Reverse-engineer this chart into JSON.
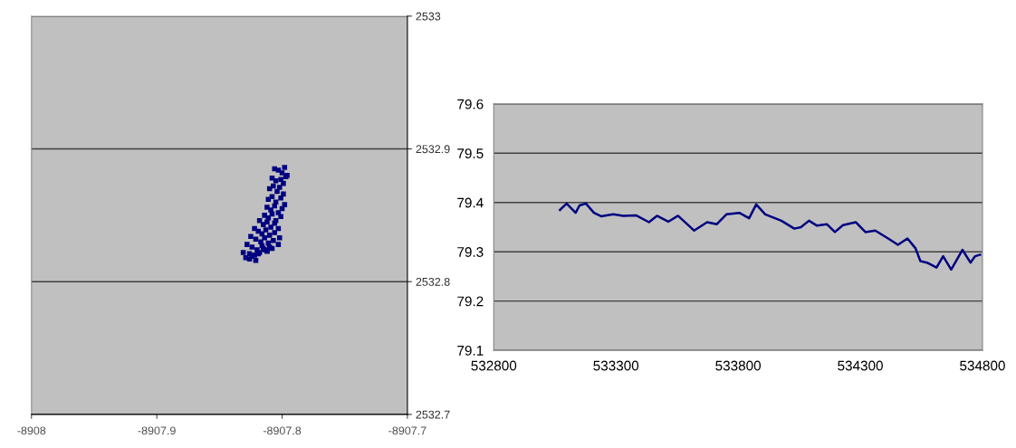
{
  "chart_data": [
    {
      "type": "scatter",
      "marker": "square",
      "grid": "y",
      "color": "#000080",
      "x": [
        -8907.806,
        -8907.803,
        -8907.8,
        -8907.798,
        -8907.797,
        -8907.808,
        -8907.805,
        -8907.801,
        -8907.799,
        -8907.796,
        -8907.81,
        -8907.807,
        -8907.804,
        -8907.802,
        -8907.799,
        -8907.811,
        -8907.808,
        -8907.805,
        -8907.801,
        -8907.798,
        -8907.812,
        -8907.809,
        -8907.806,
        -8907.803,
        -8907.8,
        -8907.814,
        -8907.811,
        -8907.808,
        -8907.805,
        -8907.801,
        -8907.818,
        -8907.815,
        -8907.812,
        -8907.809,
        -8907.806,
        -8907.803,
        -8907.822,
        -8907.819,
        -8907.816,
        -8907.813,
        -8907.81,
        -8907.806,
        -8907.802,
        -8907.825,
        -8907.821,
        -8907.817,
        -8907.814,
        -8907.811,
        -8907.807,
        -8907.803,
        -8907.828,
        -8907.824,
        -8907.82,
        -8907.816,
        -8907.812,
        -8907.808,
        -8907.831,
        -8907.826,
        -8907.822,
        -8907.818,
        -8907.814,
        -8907.81,
        -8907.829,
        -8907.824,
        -8907.819,
        -8907.815,
        -8907.812,
        -8907.826,
        -8907.821
      ],
      "values": [
        2532.885,
        2532.884,
        2532.882,
        2532.886,
        2532.879,
        2532.878,
        2532.876,
        2532.877,
        2532.874,
        2532.88,
        2532.87,
        2532.872,
        2532.868,
        2532.871,
        2532.866,
        2532.862,
        2532.864,
        2532.86,
        2532.863,
        2532.858,
        2532.856,
        2532.854,
        2532.857,
        2532.852,
        2532.855,
        2532.85,
        2532.848,
        2532.851,
        2532.846,
        2532.849,
        2532.846,
        2532.843,
        2532.845,
        2532.841,
        2532.844,
        2532.84,
        2532.84,
        2532.838,
        2532.836,
        2532.839,
        2532.835,
        2532.837,
        2532.833,
        2532.834,
        2532.832,
        2532.83,
        2532.833,
        2532.829,
        2532.831,
        2532.828,
        2532.828,
        2532.826,
        2532.824,
        2532.827,
        2532.823,
        2532.825,
        2532.822,
        2532.821,
        2532.82,
        2532.822,
        2532.824,
        2532.826,
        2532.818,
        2532.819,
        2532.821,
        2532.825,
        2532.823,
        2532.817,
        2532.816
      ],
      "xlim": [
        -8908,
        -8907.7
      ],
      "xticks": [
        -8908,
        -8907.9,
        -8907.8,
        -8907.7
      ],
      "ylim": [
        2532.7,
        2533
      ],
      "yticks": [
        2532.7,
        2532.8,
        2532.9,
        2533
      ]
    },
    {
      "type": "line",
      "marker": "none",
      "line_style": "solid",
      "grid": "y",
      "color": "#000080",
      "x": [
        533071,
        533098,
        533135,
        533151,
        533177,
        533210,
        533239,
        533289,
        533329,
        533382,
        533435,
        533468,
        533514,
        533554,
        533620,
        533673,
        533713,
        533752,
        533805,
        533845,
        533874,
        533911,
        533977,
        534030,
        534057,
        534090,
        534123,
        534163,
        534196,
        534229,
        534282,
        534321,
        534361,
        534414,
        534454,
        534493,
        534526,
        534546,
        534573,
        534612,
        534639,
        534672,
        534718,
        534751,
        534770,
        534790
      ],
      "values": [
        79.385,
        79.398,
        79.379,
        79.394,
        79.398,
        79.379,
        79.372,
        79.376,
        79.373,
        79.374,
        79.36,
        79.373,
        79.361,
        79.373,
        79.343,
        79.36,
        79.356,
        79.376,
        79.379,
        79.368,
        79.396,
        79.376,
        79.363,
        79.347,
        79.35,
        79.363,
        79.353,
        79.356,
        79.34,
        79.354,
        79.36,
        79.34,
        79.343,
        79.327,
        79.314,
        79.327,
        79.307,
        79.281,
        79.278,
        79.268,
        79.291,
        79.264,
        79.304,
        79.278,
        79.291,
        79.294
      ],
      "xlim": [
        532800,
        534800
      ],
      "xticks": [
        532800,
        533300,
        533800,
        534300,
        534800
      ],
      "ylim": [
        79.1,
        79.6
      ],
      "yticks": [
        79.1,
        79.2,
        79.3,
        79.4,
        79.5,
        79.6
      ]
    }
  ]
}
